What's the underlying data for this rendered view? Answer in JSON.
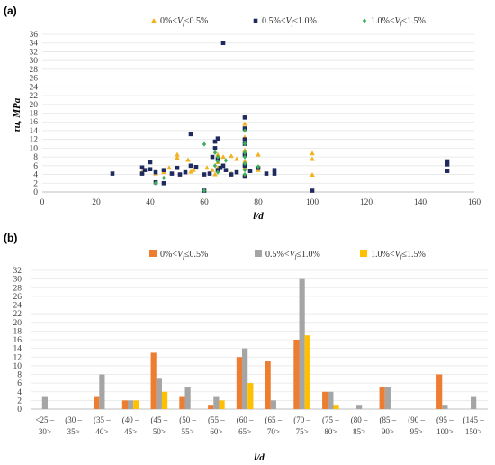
{
  "colors": {
    "series1": "#F2B21F",
    "series2": "#1F2A5E",
    "series3": "#3FAF5A",
    "bar1": "#ED7D31",
    "bar2": "#A5A5A5",
    "bar3": "#FFC000"
  },
  "chart_data": [
    {
      "panel_label": "(a)",
      "type": "scatter",
      "title": "",
      "xlabel": "l/d",
      "ylabel": "τu, MPa",
      "xlim": [
        0,
        160
      ],
      "ylim": [
        0,
        36
      ],
      "xticks": [
        0,
        20,
        40,
        60,
        80,
        100,
        120,
        140,
        160
      ],
      "yticks": [
        0,
        2,
        4,
        6,
        8,
        10,
        12,
        14,
        16,
        18,
        20,
        22,
        24,
        26,
        28,
        30,
        32,
        34,
        36
      ],
      "legend": "top",
      "grid": "horizontal",
      "series": [
        {
          "name": "0%<Vf≤0.5%",
          "marker": "triangle",
          "points": [
            [
              37,
              4.5
            ],
            [
              42,
              4.2
            ],
            [
              45,
              4.5
            ],
            [
              47,
              5.5
            ],
            [
              50,
              7.8
            ],
            [
              50,
              8.5
            ],
            [
              54,
              7.3
            ],
            [
              55,
              4.6
            ],
            [
              56,
              5.0
            ],
            [
              57,
              5.5
            ],
            [
              61,
              5.5
            ],
            [
              63,
              5.0
            ],
            [
              64,
              4.0
            ],
            [
              65,
              5.5
            ],
            [
              65,
              6.8
            ],
            [
              67,
              8.0
            ],
            [
              70,
              8.2
            ],
            [
              70,
              4.2
            ],
            [
              72,
              7.5
            ],
            [
              75,
              9.5
            ],
            [
              75,
              7.0
            ],
            [
              75,
              5.5
            ],
            [
              75,
              15.5
            ],
            [
              80,
              8.5
            ],
            [
              80,
              5.0
            ],
            [
              100,
              8.8
            ],
            [
              100,
              7.5
            ],
            [
              100,
              3.9
            ],
            [
              65,
              8.5
            ],
            [
              75,
              12.5
            ]
          ]
        },
        {
          "name": "0.5%<Vf≤1.0%",
          "marker": "square",
          "points": [
            [
              26,
              4.2
            ],
            [
              37,
              5.6
            ],
            [
              37,
              4.2
            ],
            [
              38,
              5.0
            ],
            [
              40,
              6.8
            ],
            [
              40,
              5.2
            ],
            [
              42,
              4.5
            ],
            [
              42,
              2.2
            ],
            [
              45,
              5.0
            ],
            [
              45,
              2.0
            ],
            [
              48,
              4.2
            ],
            [
              50,
              5.5
            ],
            [
              51,
              4.0
            ],
            [
              53,
              4.5
            ],
            [
              55,
              13.2
            ],
            [
              55,
              6.0
            ],
            [
              57,
              5.7
            ],
            [
              60,
              0.3
            ],
            [
              60,
              4.0
            ],
            [
              62,
              4.2
            ],
            [
              63,
              8.0
            ],
            [
              64,
              11.5
            ],
            [
              64,
              10.0
            ],
            [
              65,
              12.2
            ],
            [
              65,
              7.5
            ],
            [
              65,
              5.0
            ],
            [
              66,
              5.5
            ],
            [
              67,
              34.0
            ],
            [
              67,
              6.0
            ],
            [
              68,
              5.0
            ],
            [
              70,
              4.0
            ],
            [
              72,
              4.5
            ],
            [
              75,
              17.0
            ],
            [
              75,
              14.5
            ],
            [
              75,
              12.0
            ],
            [
              75,
              11.0
            ],
            [
              75,
              8.5
            ],
            [
              75,
              6.0
            ],
            [
              75,
              3.5
            ],
            [
              77,
              4.8
            ],
            [
              80,
              5.5
            ],
            [
              83,
              4.2
            ],
            [
              86,
              4.2
            ],
            [
              86,
              5.0
            ],
            [
              100,
              0.3
            ],
            [
              150,
              7.0
            ],
            [
              150,
              6.3
            ],
            [
              150,
              4.8
            ]
          ]
        },
        {
          "name": "1.0%<Vf≤1.5%",
          "marker": "diamond",
          "points": [
            [
              42,
              2.0
            ],
            [
              45,
              3.2
            ],
            [
              60,
              10.9
            ],
            [
              60,
              0.3
            ],
            [
              64,
              9.0
            ],
            [
              64,
              6.0
            ],
            [
              65,
              8.0
            ],
            [
              65,
              4.5
            ],
            [
              65,
              7.0
            ],
            [
              68,
              7.2
            ],
            [
              75,
              14.0
            ],
            [
              75,
              11.0
            ],
            [
              75,
              9.0
            ],
            [
              75,
              8.0
            ],
            [
              75,
              6.5
            ],
            [
              75,
              5.0
            ],
            [
              75,
              4.0
            ],
            [
              80,
              5.8
            ]
          ]
        }
      ]
    },
    {
      "panel_label": "(b)",
      "type": "bar",
      "title": "",
      "xlabel": "l/d",
      "ylabel": "",
      "ylim": [
        0,
        32
      ],
      "yticks": [
        0,
        2,
        4,
        6,
        8,
        10,
        12,
        14,
        16,
        18,
        20,
        22,
        24,
        26,
        28,
        30,
        32
      ],
      "legend": "top",
      "grid": "horizontal",
      "categories": [
        [
          "<25 –",
          "30>"
        ],
        [
          "(30 –",
          "35>"
        ],
        [
          "(35 –",
          "40>"
        ],
        [
          "(40 –",
          "45>"
        ],
        [
          "(45 –",
          "50>"
        ],
        [
          "(50 –",
          "55>"
        ],
        [
          "(55 –",
          "60>"
        ],
        [
          "(60 –",
          "65>"
        ],
        [
          "(65 –",
          "70>"
        ],
        [
          "(70 –",
          "75>"
        ],
        [
          "(75 –",
          "80>"
        ],
        [
          "(80 –",
          "85>"
        ],
        [
          "(85 –",
          "90>"
        ],
        [
          "(90 –",
          "95>"
        ],
        [
          "(95 –",
          "100>"
        ],
        [
          "(145 –",
          "150>"
        ]
      ],
      "series": [
        {
          "name": "0%<Vf≤0.5%",
          "values": [
            0,
            0,
            3,
            2,
            13,
            3,
            1,
            12,
            11,
            16,
            4,
            0,
            5,
            0,
            8,
            0
          ]
        },
        {
          "name": "0.5%<Vf≤1.0%",
          "values": [
            3,
            0,
            8,
            2,
            7,
            5,
            3,
            14,
            2,
            30,
            4,
            1,
            5,
            0,
            1,
            3
          ]
        },
        {
          "name": "1.0%<Vf≤1.5%",
          "values": [
            0,
            0,
            0,
            2,
            4,
            0,
            2,
            6,
            0,
            17,
            1,
            0,
            0,
            0,
            0,
            0
          ]
        }
      ]
    }
  ]
}
